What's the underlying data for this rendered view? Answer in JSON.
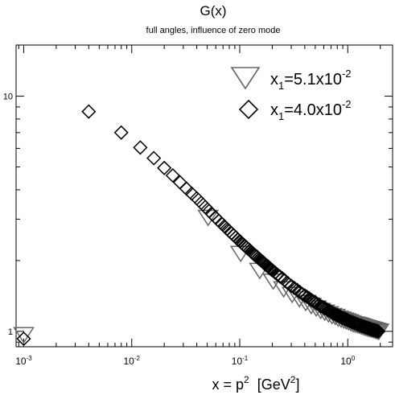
{
  "chart_data": {
    "type": "scatter",
    "title": "G(x)",
    "subtitle": "full angles, influence of zero mode",
    "xlabel": {
      "main": "x = p",
      "sup1": "2",
      "unit_open": "[GeV",
      "sup2": "2",
      "unit_close": "]"
    },
    "ylabel": "",
    "xscale": "log",
    "yscale": "log",
    "xlim": [
      0.00085,
      2.6
    ],
    "ylim": [
      0.86,
      16.5
    ],
    "grid": false,
    "legend_position": "top-right",
    "x_ticks": [
      {
        "value": 0.001,
        "base": "10",
        "exp": "-3"
      },
      {
        "value": 0.01,
        "base": "10",
        "exp": "-2"
      },
      {
        "value": 0.1,
        "base": "10",
        "exp": "-1"
      },
      {
        "value": 1,
        "base": "10",
        "exp": "0"
      }
    ],
    "y_ticks": [
      {
        "value": 1,
        "label": "1"
      },
      {
        "value": 10,
        "label": "10"
      }
    ],
    "series": [
      {
        "name": {
          "prefix": "x",
          "sub": "1",
          "mid": "=5.1x10",
          "sup": "-2"
        },
        "marker": "triangle-down",
        "color": "#666666",
        "x": [
          0.001,
          0.051,
          0.102,
          0.153,
          0.204,
          0.255,
          0.306,
          0.357,
          0.408,
          0.459,
          0.51,
          0.561,
          0.612,
          0.663,
          0.714,
          0.765,
          0.816,
          0.867,
          0.918,
          0.969,
          1.02,
          1.071,
          1.122,
          1.173,
          1.224,
          1.275,
          1.326,
          1.377,
          1.428,
          1.479,
          1.53,
          1.581,
          1.632,
          1.683,
          1.734,
          1.785,
          1.836,
          1.887,
          1.938
        ],
        "y": [
          0.97,
          3.06,
          2.15,
          1.82,
          1.64,
          1.52,
          1.44,
          1.38,
          1.33,
          1.29,
          1.26,
          1.23,
          1.21,
          1.19,
          1.17,
          1.16,
          1.14,
          1.13,
          1.12,
          1.11,
          1.1,
          1.09,
          1.08,
          1.075,
          1.07,
          1.063,
          1.057,
          1.05,
          1.045,
          1.04,
          1.035,
          1.03,
          1.026,
          1.022,
          1.018,
          1.014,
          1.01,
          1.006,
          1.003
        ]
      },
      {
        "name": {
          "prefix": "x",
          "sub": "1",
          "mid": "=4.0x10",
          "sup": "-2"
        },
        "marker": "diamond",
        "color": "#000000",
        "x": [
          0.001,
          0.004,
          0.008,
          0.012,
          0.016,
          0.02,
          0.024,
          0.028,
          0.032,
          0.036,
          0.04,
          0.044,
          0.048,
          0.052,
          0.056,
          0.06,
          0.064,
          0.068,
          0.072,
          0.076,
          0.08,
          0.084,
          0.088,
          0.092,
          0.096,
          0.1,
          0.104,
          0.108,
          0.112,
          0.116,
          0.12,
          0.124,
          0.128,
          0.132,
          0.136,
          0.14,
          0.144,
          0.148,
          0.152,
          0.156,
          0.16,
          0.164,
          0.168,
          0.172,
          0.176,
          0.18,
          0.184,
          0.188,
          0.192,
          0.196,
          0.2,
          0.212,
          0.224,
          0.236,
          0.248,
          0.26,
          0.28,
          0.3,
          0.32,
          0.34,
          0.36,
          0.38,
          0.4,
          0.42,
          0.44,
          0.46,
          0.48,
          0.5,
          0.52,
          0.54,
          0.56,
          0.58,
          0.6,
          0.62,
          0.64,
          0.66,
          0.68,
          0.7,
          0.72,
          0.74,
          0.76,
          0.78,
          0.8,
          0.82,
          0.84,
          0.86,
          0.88,
          0.9,
          0.92,
          0.94,
          0.96,
          0.98,
          1.0,
          1.04,
          1.08,
          1.12,
          1.16,
          1.2,
          1.24,
          1.28,
          1.32,
          1.36,
          1.4,
          1.44,
          1.48,
          1.52,
          1.56,
          1.6,
          1.64,
          1.68,
          1.72,
          1.76,
          1.8,
          1.84,
          1.88,
          1.92
        ],
        "y": [
          0.93,
          8.6,
          7.0,
          6.05,
          5.45,
          4.95,
          4.6,
          4.3,
          4.05,
          3.85,
          3.68,
          3.52,
          3.38,
          3.25,
          3.14,
          3.04,
          2.95,
          2.87,
          2.8,
          2.73,
          2.67,
          2.61,
          2.56,
          2.51,
          2.46,
          2.42,
          2.38,
          2.34,
          2.3,
          2.27,
          2.24,
          2.21,
          2.18,
          2.15,
          2.12,
          2.1,
          2.08,
          2.05,
          2.03,
          2.01,
          1.99,
          1.97,
          1.95,
          1.93,
          1.91,
          1.9,
          1.88,
          1.86,
          1.85,
          1.83,
          1.82,
          1.78,
          1.74,
          1.71,
          1.68,
          1.65,
          1.6,
          1.56,
          1.53,
          1.5,
          1.47,
          1.44,
          1.42,
          1.4,
          1.38,
          1.36,
          1.34,
          1.33,
          1.31,
          1.3,
          1.28,
          1.27,
          1.26,
          1.25,
          1.24,
          1.23,
          1.22,
          1.21,
          1.2,
          1.19,
          1.185,
          1.178,
          1.17,
          1.164,
          1.158,
          1.152,
          1.146,
          1.14,
          1.135,
          1.13,
          1.125,
          1.12,
          1.115,
          1.106,
          1.098,
          1.09,
          1.083,
          1.076,
          1.07,
          1.064,
          1.058,
          1.053,
          1.048,
          1.043,
          1.038,
          1.034,
          1.03,
          1.026,
          1.022,
          1.018,
          1.015,
          1.012,
          1.009,
          1.006,
          1.003,
          1.0
        ]
      }
    ]
  }
}
